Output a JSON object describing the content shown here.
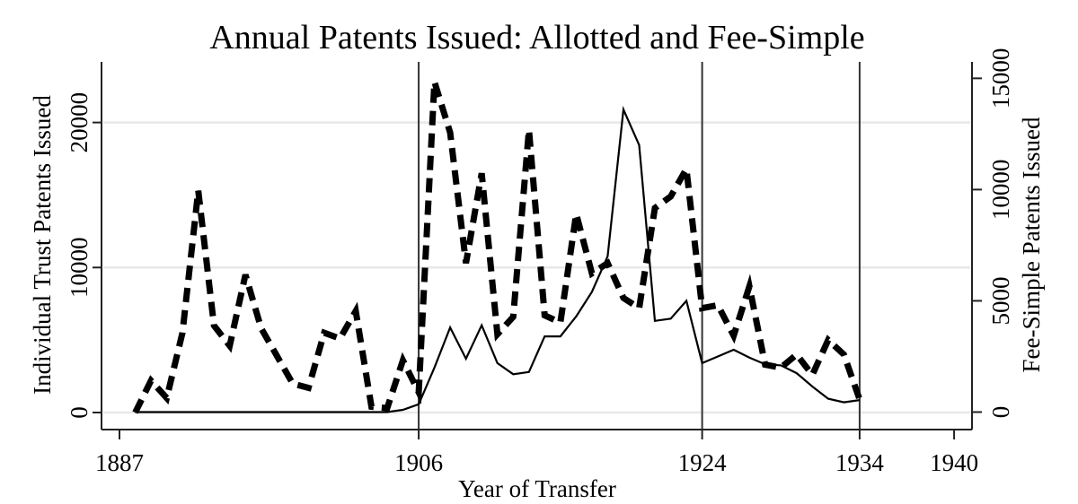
{
  "chart_data": {
    "type": "line",
    "title": "Annual Patents Issued: Allotted and Fee-Simple",
    "xlabel": "Year of Transfer",
    "ylabel": "Individual Trust Patents Issued",
    "ylabel_right": "Fee-Simple Patents Issued",
    "xlim": [
      1885.5,
      1941.2
    ],
    "x_ticks": [
      1887,
      1906,
      1924,
      1934,
      1940
    ],
    "ylim": [
      0,
      24000
    ],
    "y_ticks": [
      0,
      10000,
      20000
    ],
    "ylim_right": [
      0,
      15500
    ],
    "y_ticks_right": [
      0,
      5000,
      10000,
      15000
    ],
    "grid": true,
    "reference_lines_x": [
      1906,
      1924,
      1934
    ],
    "legend": null,
    "series": [
      {
        "name": "Individual Trust Patents Issued",
        "axis": "left",
        "style": "dashed-thick",
        "x": [
          1888,
          1889,
          1890,
          1891,
          1892,
          1893,
          1894,
          1895,
          1896,
          1897,
          1898,
          1899,
          1900,
          1901,
          1902,
          1903,
          1904,
          1905,
          1906,
          1907,
          1908,
          1909,
          1910,
          1911,
          1912,
          1913,
          1914,
          1915,
          1916,
          1917,
          1918,
          1919,
          1920,
          1921,
          1922,
          1923,
          1924,
          1925,
          1926,
          1927,
          1928,
          1929,
          1930,
          1931,
          1932,
          1933,
          1934
        ],
        "values": [
          0,
          2200,
          1000,
          5500,
          15300,
          6000,
          4600,
          9500,
          5800,
          3900,
          2000,
          1700,
          5500,
          5100,
          7000,
          400,
          300,
          3600,
          1400,
          22800,
          19300,
          10300,
          16500,
          5400,
          6600,
          19500,
          6700,
          6200,
          13700,
          9600,
          10300,
          7900,
          7200,
          14100,
          14900,
          16800,
          7200,
          7400,
          5300,
          8700,
          3300,
          3100,
          4000,
          2600,
          5000,
          4000,
          900
        ]
      },
      {
        "name": "Fee-Simple Patents Issued",
        "axis": "right",
        "style": "solid-thin",
        "x": [
          1888,
          1889,
          1890,
          1891,
          1892,
          1893,
          1894,
          1895,
          1896,
          1897,
          1898,
          1899,
          1900,
          1901,
          1902,
          1903,
          1904,
          1905,
          1906,
          1907,
          1908,
          1909,
          1910,
          1911,
          1912,
          1913,
          1914,
          1915,
          1916,
          1917,
          1918,
          1919,
          1920,
          1921,
          1922,
          1923,
          1924,
          1925,
          1926,
          1927,
          1928,
          1929,
          1930,
          1931,
          1932,
          1933,
          1934
        ],
        "values": [
          0,
          0,
          0,
          0,
          0,
          0,
          0,
          0,
          0,
          0,
          0,
          0,
          0,
          0,
          0,
          0,
          0,
          100,
          350,
          2000,
          3800,
          2400,
          3900,
          2200,
          1700,
          1800,
          3400,
          3400,
          4300,
          5400,
          7000,
          13600,
          12000,
          4100,
          4200,
          5000,
          2200,
          2500,
          2800,
          2450,
          2150,
          2100,
          1750,
          1150,
          600,
          440,
          540
        ]
      }
    ]
  },
  "figure": {
    "title": "Annual Patents Issued: Allotted and Fee-Simple",
    "x_axis": {
      "title": "Year of Transfer",
      "ticks": [
        {
          "value": 1887,
          "label": "1887"
        },
        {
          "value": 1906,
          "label": "1906"
        },
        {
          "value": 1924,
          "label": "1924"
        },
        {
          "value": 1934,
          "label": "1934"
        },
        {
          "value": 1940,
          "label": "1940"
        }
      ]
    },
    "y_axis_left": {
      "title": "Individual Trust Patents Issued",
      "ticks": [
        {
          "value": 0,
          "label": "0"
        },
        {
          "value": 10000,
          "label": "10000"
        },
        {
          "value": 20000,
          "label": "20000"
        }
      ]
    },
    "y_axis_right": {
      "title": "Fee-Simple Patents Issued",
      "ticks": [
        {
          "value": 0,
          "label": "0"
        },
        {
          "value": 5000,
          "label": "5000"
        },
        {
          "value": 10000,
          "label": "10000"
        },
        {
          "value": 15000,
          "label": "15000"
        }
      ]
    },
    "colors": {
      "line": "#000000",
      "grid": "#e6e8ea",
      "axis": "#222222",
      "background": "#ffffff"
    }
  }
}
